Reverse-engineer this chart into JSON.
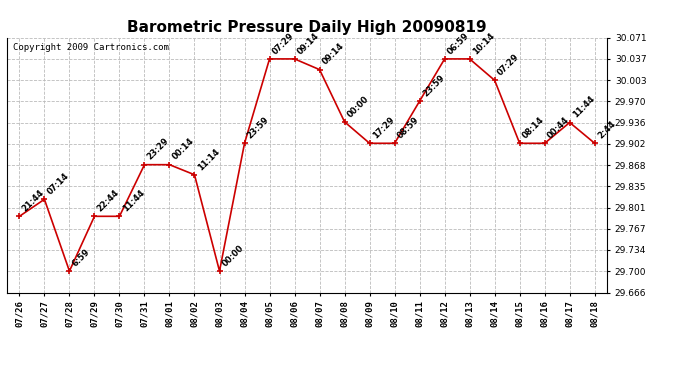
{
  "title": "Barometric Pressure Daily High 20090819",
  "copyright": "Copyright 2009 Cartronics.com",
  "x_labels": [
    "07/26",
    "07/27",
    "07/28",
    "07/29",
    "07/30",
    "07/31",
    "08/01",
    "08/02",
    "08/03",
    "08/04",
    "08/05",
    "08/06",
    "08/07",
    "08/08",
    "08/09",
    "08/10",
    "08/11",
    "08/12",
    "08/13",
    "08/14",
    "08/15",
    "08/16",
    "08/17",
    "08/18"
  ],
  "x_values": [
    0,
    1,
    2,
    3,
    4,
    5,
    6,
    7,
    8,
    9,
    10,
    11,
    12,
    13,
    14,
    15,
    16,
    17,
    18,
    19,
    20,
    21,
    22,
    23
  ],
  "y_values": [
    29.787,
    29.814,
    29.7,
    29.787,
    29.787,
    29.869,
    29.869,
    29.853,
    29.7,
    29.903,
    30.037,
    30.037,
    30.02,
    29.937,
    29.903,
    29.903,
    29.97,
    30.037,
    30.037,
    30.003,
    29.903,
    29.903,
    29.936,
    29.903
  ],
  "time_labels": [
    "21:44",
    "07:14",
    "6:59",
    "22:44",
    "11:44",
    "23:29",
    "00:14",
    "11:14",
    "00:00",
    "23:59",
    "07:29",
    "09:14",
    "09:14",
    "00:00",
    "17:29",
    "08:59",
    "23:59",
    "06:59",
    "10:14",
    "07:29",
    "08:14",
    "00:44",
    "11:44",
    "2:44"
  ],
  "ylim_min": 29.666,
  "ylim_max": 30.071,
  "yticks": [
    29.666,
    29.7,
    29.734,
    29.767,
    29.801,
    29.835,
    29.868,
    29.902,
    29.936,
    29.97,
    30.003,
    30.037,
    30.071
  ],
  "line_color": "#cc0000",
  "marker_color": "#cc0000",
  "grid_color": "#bbbbbb",
  "background_color": "#ffffff",
  "title_fontsize": 11,
  "copyright_fontsize": 6.5,
  "label_fontsize": 6,
  "tick_fontsize": 6.5
}
